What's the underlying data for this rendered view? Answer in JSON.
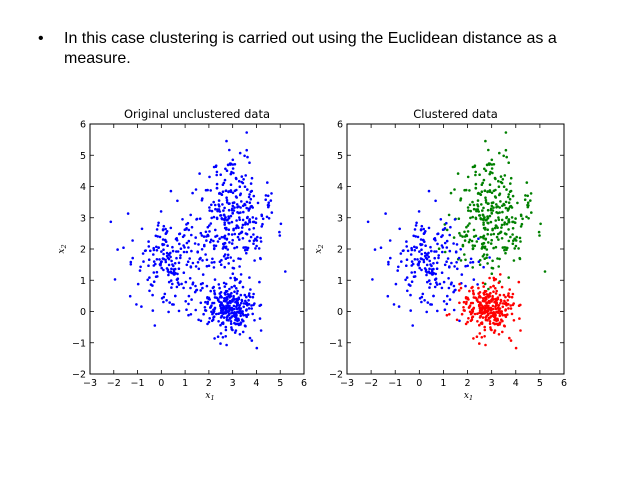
{
  "slide": {
    "bullet_symbol": "•",
    "bullet_text": "In this case clustering is carried out using the Euclidean distance as a measure."
  },
  "chart_data": [
    {
      "type": "scatter",
      "title": "Original unclustered data",
      "xlabel": "x",
      "xlabel_sub": "1",
      "ylabel": "x",
      "ylabel_sub": "2",
      "xlim": [
        -3,
        6
      ],
      "ylim": [
        -2,
        6
      ],
      "xticks": [
        -3,
        -2,
        -1,
        0,
        1,
        2,
        3,
        4,
        5,
        6
      ],
      "yticks": [
        -2,
        -1,
        0,
        1,
        2,
        3,
        4,
        5,
        6
      ],
      "grid": false,
      "legend": "none",
      "series": [
        {
          "color": "#0000ff",
          "distribution": "gaussian",
          "center": [
            2.9,
            3.0
          ],
          "std": [
            0.8,
            0.9
          ],
          "count": 330
        },
        {
          "color": "#0000ff",
          "distribution": "gaussian",
          "center": [
            0.5,
            1.5
          ],
          "std": [
            0.85,
            0.8
          ],
          "count": 220
        },
        {
          "color": "#0000ff",
          "distribution": "gaussian",
          "center": [
            2.9,
            0.1
          ],
          "std": [
            0.55,
            0.42
          ],
          "count": 300
        }
      ]
    },
    {
      "type": "scatter",
      "title": "Clustered data",
      "xlabel": "x",
      "xlabel_sub": "1",
      "ylabel": "x",
      "ylabel_sub": "2",
      "xlim": [
        -3,
        6
      ],
      "ylim": [
        -2,
        6
      ],
      "xticks": [
        -3,
        -2,
        -1,
        0,
        1,
        2,
        3,
        4,
        5,
        6
      ],
      "yticks": [
        -2,
        -1,
        0,
        1,
        2,
        3,
        4,
        5,
        6
      ],
      "grid": false,
      "legend": "none",
      "series": [
        {
          "color": "#008000",
          "distribution": "gaussian",
          "center": [
            2.9,
            3.0
          ],
          "std": [
            0.8,
            0.9
          ],
          "count": 330
        },
        {
          "color": "#0000ff",
          "distribution": "gaussian",
          "center": [
            0.5,
            1.5
          ],
          "std": [
            0.85,
            0.8
          ],
          "count": 220
        },
        {
          "color": "#ff0000",
          "distribution": "gaussian",
          "center": [
            2.9,
            0.1
          ],
          "std": [
            0.55,
            0.42
          ],
          "count": 300
        }
      ]
    }
  ]
}
